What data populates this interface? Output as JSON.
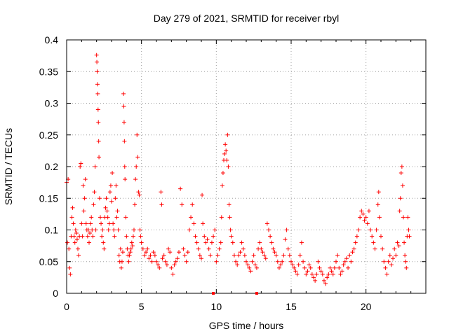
{
  "chart_data": {
    "type": "scatter",
    "title": "Day 279 of 2021, SRMTID for receiver rbyl",
    "xlabel": "GPS time / hours",
    "ylabel": "SRMTID / TECUs",
    "xlim": [
      0,
      24
    ],
    "ylim": [
      0,
      0.4
    ],
    "x_ticks": [
      0,
      5,
      10,
      15,
      20
    ],
    "x_tick_labels": [
      "0",
      "5",
      "10",
      "15",
      "20"
    ],
    "y_ticks": [
      0,
      0.05,
      0.1,
      0.15,
      0.2,
      0.25,
      0.3,
      0.35,
      0.4
    ],
    "y_tick_labels": [
      "0",
      "0.05",
      "0.1",
      "0.15",
      "0.2",
      "0.25",
      "0.3",
      "0.35",
      "0.4"
    ],
    "grid": true,
    "marker": "+",
    "color": "#ff0000",
    "series": [
      {
        "name": "rbyl",
        "points": [
          [
            0.0,
            0.175
          ],
          [
            0.05,
            0.08
          ],
          [
            0.1,
            0.18
          ],
          [
            0.15,
            0.07
          ],
          [
            0.2,
            0.04
          ],
          [
            0.25,
            0.03
          ],
          [
            0.3,
            0.09
          ],
          [
            0.35,
            0.12
          ],
          [
            0.4,
            0.135
          ],
          [
            0.45,
            0.11
          ],
          [
            0.5,
            0.09
          ],
          [
            0.55,
            0.08
          ],
          [
            0.6,
            0.1
          ],
          [
            0.65,
            0.095
          ],
          [
            0.7,
            0.085
          ],
          [
            0.75,
            0.07
          ],
          [
            0.8,
            0.06
          ],
          [
            0.85,
            0.09
          ],
          [
            0.9,
            0.2
          ],
          [
            0.95,
            0.205
          ],
          [
            1.0,
            0.11
          ],
          [
            1.05,
            0.09
          ],
          [
            1.1,
            0.17
          ],
          [
            1.15,
            0.13
          ],
          [
            1.2,
            0.15
          ],
          [
            1.25,
            0.18
          ],
          [
            1.3,
            0.11
          ],
          [
            1.35,
            0.1
          ],
          [
            1.4,
            0.09
          ],
          [
            1.45,
            0.1
          ],
          [
            1.5,
            0.08
          ],
          [
            1.55,
            0.095
          ],
          [
            1.6,
            0.11
          ],
          [
            1.65,
            0.12
          ],
          [
            1.7,
            0.1
          ],
          [
            1.75,
            0.09
          ],
          [
            1.8,
            0.14
          ],
          [
            1.85,
            0.16
          ],
          [
            1.9,
            0.2
          ],
          [
            1.95,
            0.1
          ],
          [
            2.0,
            0.376
          ],
          [
            2.02,
            0.365
          ],
          [
            2.04,
            0.35
          ],
          [
            2.06,
            0.33
          ],
          [
            2.08,
            0.315
          ],
          [
            2.1,
            0.29
          ],
          [
            2.12,
            0.27
          ],
          [
            2.14,
            0.24
          ],
          [
            2.16,
            0.215
          ],
          [
            2.2,
            0.15
          ],
          [
            2.25,
            0.12
          ],
          [
            2.3,
            0.11
          ],
          [
            2.35,
            0.09
          ],
          [
            2.4,
            0.1
          ],
          [
            2.45,
            0.08
          ],
          [
            2.5,
            0.07
          ],
          [
            2.55,
            0.12
          ],
          [
            2.6,
            0.135
          ],
          [
            2.65,
            0.15
          ],
          [
            2.7,
            0.13
          ],
          [
            2.75,
            0.12
          ],
          [
            2.8,
            0.1
          ],
          [
            2.85,
            0.11
          ],
          [
            2.9,
            0.16
          ],
          [
            2.95,
            0.17
          ],
          [
            3.0,
            0.145
          ],
          [
            3.05,
            0.19
          ],
          [
            3.1,
            0.11
          ],
          [
            3.15,
            0.1
          ],
          [
            3.2,
            0.09
          ],
          [
            3.25,
            0.15
          ],
          [
            3.3,
            0.17
          ],
          [
            3.35,
            0.12
          ],
          [
            3.4,
            0.13
          ],
          [
            3.45,
            0.1
          ],
          [
            3.5,
            0.06
          ],
          [
            3.55,
            0.05
          ],
          [
            3.6,
            0.07
          ],
          [
            3.65,
            0.04
          ],
          [
            3.7,
            0.05
          ],
          [
            3.75,
            0.065
          ],
          [
            3.8,
            0.315
          ],
          [
            3.82,
            0.295
          ],
          [
            3.84,
            0.27
          ],
          [
            3.86,
            0.24
          ],
          [
            3.88,
            0.2
          ],
          [
            3.9,
            0.18
          ],
          [
            3.95,
            0.12
          ],
          [
            4.0,
            0.09
          ],
          [
            4.05,
            0.07
          ],
          [
            4.1,
            0.06
          ],
          [
            4.15,
            0.05
          ],
          [
            4.2,
            0.06
          ],
          [
            4.25,
            0.065
          ],
          [
            4.3,
            0.07
          ],
          [
            4.35,
            0.08
          ],
          [
            4.4,
            0.075
          ],
          [
            4.45,
            0.09
          ],
          [
            4.5,
            0.1
          ],
          [
            4.55,
            0.14
          ],
          [
            4.6,
            0.18
          ],
          [
            4.65,
            0.2
          ],
          [
            4.7,
            0.25
          ],
          [
            4.75,
            0.215
          ],
          [
            4.8,
            0.16
          ],
          [
            4.85,
            0.155
          ],
          [
            4.9,
            0.1
          ],
          [
            4.95,
            0.09
          ],
          [
            5.0,
            0.08
          ],
          [
            5.1,
            0.07
          ],
          [
            5.2,
            0.06
          ],
          [
            5.3,
            0.065
          ],
          [
            5.4,
            0.07
          ],
          [
            5.5,
            0.055
          ],
          [
            5.6,
            0.06
          ],
          [
            5.7,
            0.05
          ],
          [
            5.8,
            0.065
          ],
          [
            5.9,
            0.06
          ],
          [
            6.0,
            0.05
          ],
          [
            6.1,
            0.045
          ],
          [
            6.2,
            0.04
          ],
          [
            6.3,
            0.16
          ],
          [
            6.35,
            0.14
          ],
          [
            6.4,
            0.055
          ],
          [
            6.5,
            0.06
          ],
          [
            6.6,
            0.05
          ],
          [
            6.7,
            0.045
          ],
          [
            6.8,
            0.07
          ],
          [
            6.9,
            0.065
          ],
          [
            7.0,
            0.04
          ],
          [
            7.1,
            0.03
          ],
          [
            7.2,
            0.045
          ],
          [
            7.3,
            0.05
          ],
          [
            7.4,
            0.055
          ],
          [
            7.5,
            0.065
          ],
          [
            7.6,
            0.165
          ],
          [
            7.7,
            0.14
          ],
          [
            7.8,
            0.07
          ],
          [
            7.9,
            0.06
          ],
          [
            8.0,
            0.05
          ],
          [
            8.1,
            0.065
          ],
          [
            8.2,
            0.1
          ],
          [
            8.3,
            0.12
          ],
          [
            8.4,
            0.14
          ],
          [
            8.5,
            0.11
          ],
          [
            8.6,
            0.09
          ],
          [
            8.7,
            0.08
          ],
          [
            8.8,
            0.07
          ],
          [
            8.9,
            0.06
          ],
          [
            9.0,
            0.055
          ],
          [
            9.05,
            0.155
          ],
          [
            9.1,
            0.11
          ],
          [
            9.2,
            0.09
          ],
          [
            9.3,
            0.08
          ],
          [
            9.4,
            0.085
          ],
          [
            9.5,
            0.07
          ],
          [
            9.6,
            0.06
          ],
          [
            9.7,
            0.08
          ],
          [
            9.8,
            0.09
          ],
          [
            9.9,
            0.1
          ],
          [
            10.0,
            0.05
          ],
          [
            10.1,
            0.06
          ],
          [
            10.2,
            0.07
          ],
          [
            10.3,
            0.08
          ],
          [
            10.35,
            0.12
          ],
          [
            10.4,
            0.17
          ],
          [
            10.45,
            0.19
          ],
          [
            10.5,
            0.21
          ],
          [
            10.55,
            0.22
          ],
          [
            10.6,
            0.235
          ],
          [
            10.65,
            0.225
          ],
          [
            10.7,
            0.21
          ],
          [
            10.75,
            0.25
          ],
          [
            10.8,
            0.2
          ],
          [
            10.85,
            0.14
          ],
          [
            10.9,
            0.12
          ],
          [
            10.95,
            0.1
          ],
          [
            11.0,
            0.09
          ],
          [
            11.1,
            0.08
          ],
          [
            11.2,
            0.06
          ],
          [
            11.3,
            0.05
          ],
          [
            11.4,
            0.045
          ],
          [
            11.5,
            0.06
          ],
          [
            11.6,
            0.065
          ],
          [
            11.7,
            0.08
          ],
          [
            11.8,
            0.07
          ],
          [
            11.9,
            0.06
          ],
          [
            12.0,
            0.05
          ],
          [
            12.1,
            0.045
          ],
          [
            12.2,
            0.04
          ],
          [
            12.3,
            0.035
          ],
          [
            12.4,
            0.05
          ],
          [
            12.5,
            0.06
          ],
          [
            12.6,
            0.045
          ],
          [
            12.7,
            0.04
          ],
          [
            12.8,
            0.07
          ],
          [
            12.9,
            0.08
          ],
          [
            13.0,
            0.07
          ],
          [
            13.1,
            0.065
          ],
          [
            13.2,
            0.06
          ],
          [
            13.3,
            0.055
          ],
          [
            13.4,
            0.11
          ],
          [
            13.5,
            0.1
          ],
          [
            13.6,
            0.09
          ],
          [
            13.7,
            0.08
          ],
          [
            13.8,
            0.07
          ],
          [
            13.9,
            0.065
          ],
          [
            14.0,
            0.06
          ],
          [
            14.1,
            0.05
          ],
          [
            14.2,
            0.04
          ],
          [
            14.3,
            0.045
          ],
          [
            14.4,
            0.05
          ],
          [
            14.5,
            0.06
          ],
          [
            14.6,
            0.085
          ],
          [
            14.7,
            0.1
          ],
          [
            14.8,
            0.07
          ],
          [
            14.9,
            0.06
          ],
          [
            15.0,
            0.05
          ],
          [
            15.1,
            0.045
          ],
          [
            15.2,
            0.04
          ],
          [
            15.3,
            0.035
          ],
          [
            15.4,
            0.03
          ],
          [
            15.5,
            0.045
          ],
          [
            15.6,
            0.06
          ],
          [
            15.7,
            0.08
          ],
          [
            15.8,
            0.05
          ],
          [
            15.9,
            0.04
          ],
          [
            16.0,
            0.03
          ],
          [
            16.1,
            0.035
          ],
          [
            16.2,
            0.045
          ],
          [
            16.3,
            0.04
          ],
          [
            16.4,
            0.03
          ],
          [
            16.5,
            0.025
          ],
          [
            16.6,
            0.02
          ],
          [
            16.7,
            0.03
          ],
          [
            16.8,
            0.05
          ],
          [
            16.9,
            0.04
          ],
          [
            17.0,
            0.035
          ],
          [
            17.1,
            0.03
          ],
          [
            17.2,
            0.02
          ],
          [
            17.3,
            0.015
          ],
          [
            17.4,
            0.025
          ],
          [
            17.5,
            0.03
          ],
          [
            17.6,
            0.04
          ],
          [
            17.7,
            0.035
          ],
          [
            17.8,
            0.03
          ],
          [
            17.9,
            0.04
          ],
          [
            18.0,
            0.05
          ],
          [
            18.1,
            0.06
          ],
          [
            18.2,
            0.04
          ],
          [
            18.3,
            0.03
          ],
          [
            18.4,
            0.035
          ],
          [
            18.5,
            0.045
          ],
          [
            18.6,
            0.05
          ],
          [
            18.7,
            0.055
          ],
          [
            18.8,
            0.04
          ],
          [
            18.9,
            0.06
          ],
          [
            19.0,
            0.05
          ],
          [
            19.1,
            0.065
          ],
          [
            19.2,
            0.07
          ],
          [
            19.3,
            0.08
          ],
          [
            19.4,
            0.09
          ],
          [
            19.5,
            0.1
          ],
          [
            19.6,
            0.12
          ],
          [
            19.7,
            0.13
          ],
          [
            19.8,
            0.125
          ],
          [
            19.9,
            0.115
          ],
          [
            20.0,
            0.12
          ],
          [
            20.1,
            0.11
          ],
          [
            20.2,
            0.13
          ],
          [
            20.3,
            0.1
          ],
          [
            20.4,
            0.09
          ],
          [
            20.5,
            0.08
          ],
          [
            20.6,
            0.07
          ],
          [
            20.7,
            0.1
          ],
          [
            20.8,
            0.14
          ],
          [
            20.85,
            0.16
          ],
          [
            20.9,
            0.12
          ],
          [
            21.0,
            0.09
          ],
          [
            21.1,
            0.07
          ],
          [
            21.2,
            0.05
          ],
          [
            21.3,
            0.04
          ],
          [
            21.4,
            0.03
          ],
          [
            21.5,
            0.05
          ],
          [
            21.6,
            0.06
          ],
          [
            21.7,
            0.045
          ],
          [
            21.8,
            0.055
          ],
          [
            21.9,
            0.07
          ],
          [
            22.0,
            0.06
          ],
          [
            22.1,
            0.08
          ],
          [
            22.2,
            0.075
          ],
          [
            22.25,
            0.13
          ],
          [
            22.3,
            0.15
          ],
          [
            22.35,
            0.19
          ],
          [
            22.4,
            0.2
          ],
          [
            22.45,
            0.17
          ],
          [
            22.5,
            0.12
          ],
          [
            22.55,
            0.08
          ],
          [
            22.6,
            0.06
          ],
          [
            22.65,
            0.05
          ],
          [
            22.7,
            0.04
          ],
          [
            22.75,
            0.09
          ],
          [
            22.8,
            0.12
          ],
          [
            22.85,
            0.1
          ],
          [
            22.9,
            0.09
          ]
        ]
      }
    ]
  },
  "markers": {
    "bottom_axis_marks": [
      9.8,
      12.7
    ]
  }
}
